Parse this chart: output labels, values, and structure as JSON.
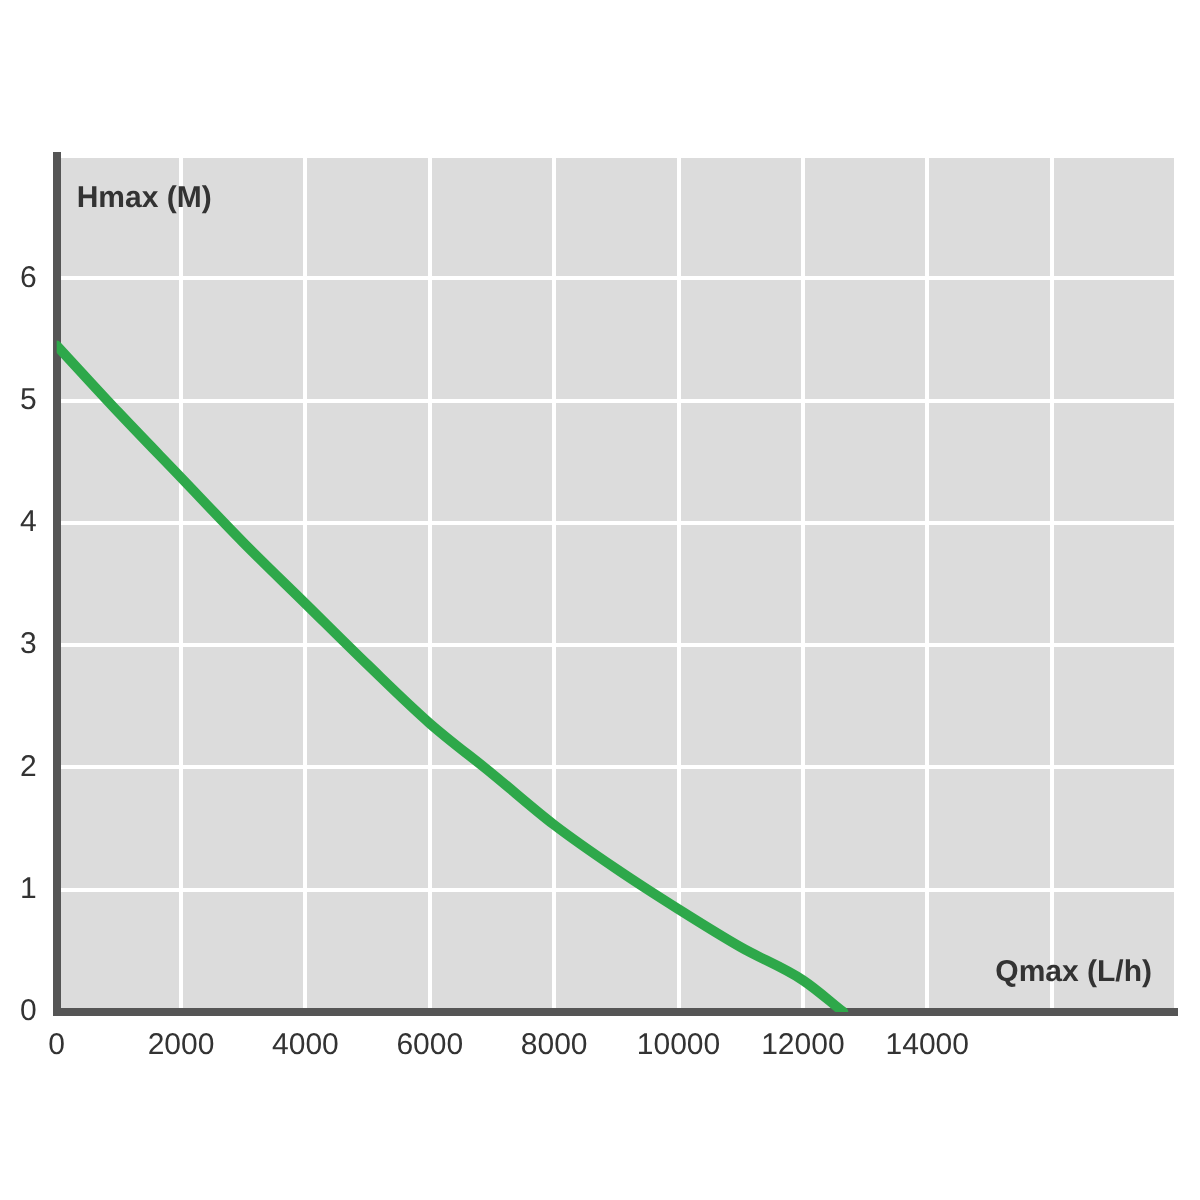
{
  "chart_data": {
    "type": "line",
    "xlabel": "Qmax (L/h)",
    "ylabel": "Hmax (M)",
    "x": [
      0,
      1000,
      2000,
      3000,
      4000,
      5000,
      6000,
      7000,
      8000,
      9000,
      10000,
      11000,
      12000,
      12650
    ],
    "series": [
      {
        "color": "#2ea84a",
        "values": [
          5.45,
          4.9,
          4.37,
          3.84,
          3.34,
          2.84,
          2.36,
          1.95,
          1.53,
          1.17,
          0.84,
          0.53,
          0.26,
          0
        ]
      }
    ],
    "xlim": [
      0,
      18000
    ],
    "xticks": [
      0,
      2000,
      4000,
      6000,
      8000,
      10000,
      12000,
      14000,
      {
        "value": 16000,
        "label": null
      },
      {
        "value": 18000,
        "label": null
      }
    ],
    "ylim": [
      0,
      7
    ],
    "yticks": [
      0,
      1,
      2,
      3,
      4,
      5,
      6,
      {
        "value": 7,
        "label": null
      }
    ],
    "grid": true,
    "legend": false,
    "marker": "none",
    "line_style": "solid"
  }
}
